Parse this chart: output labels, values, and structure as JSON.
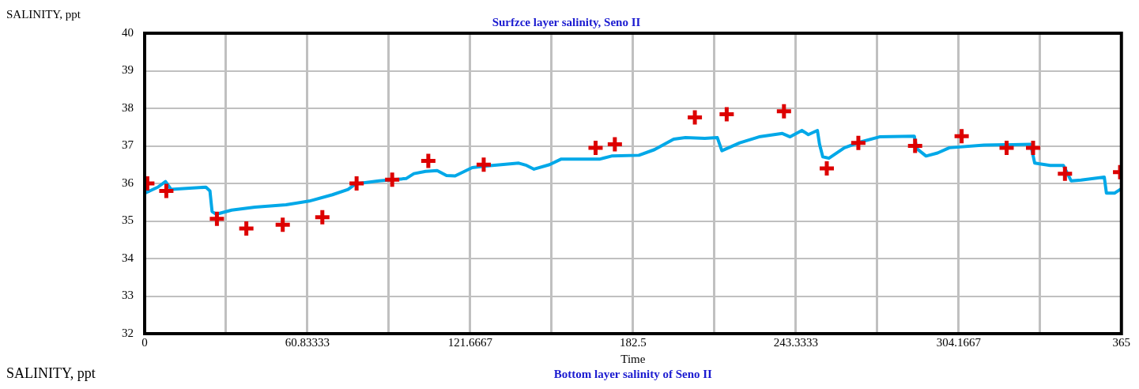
{
  "chart_data": {
    "type": "line",
    "title": "Surfzce layer salinity, Seno II",
    "ylabel": "SALINITY, ppt",
    "xlabel": "Time",
    "annotations": [
      "SALINITY, ppt",
      "Bottom layer salinity of Seno II"
    ],
    "xlim": [
      0,
      365
    ],
    "xticks": [
      0,
      {
        "value": 30.41667,
        "label": null
      },
      60.83333,
      {
        "value": 91.25,
        "label": null
      },
      121.6667,
      {
        "value": 152.0833,
        "label": null
      },
      182.5,
      {
        "value": 212.9167,
        "label": null
      },
      243.3333,
      {
        "value": 273.75,
        "label": null
      },
      304.1667,
      {
        "value": 334.5833,
        "label": null
      },
      365
    ],
    "ylim": [
      32,
      40
    ],
    "yticks": [
      32,
      33,
      34,
      35,
      36,
      37,
      38,
      39,
      40
    ],
    "grid": true,
    "legend": false,
    "series": [
      {
        "color": "#00a8e8",
        "marker": "none",
        "line_style": "solid",
        "x": [
          0,
          4.9,
          7.8,
          9.9,
          18,
          22.9,
          24.4,
          25.2,
          26.7,
          32.5,
          41.2,
          52.8,
          61.5,
          70.2,
          76,
          78.9,
          87.6,
          97.7,
          100.6,
          105,
          109.3,
          112.8,
          116,
          122.4,
          126.7,
          139.8,
          142.7,
          145.5,
          151.3,
          155.7,
          170.2,
          174.5,
          184.7,
          190.5,
          197.7,
          202.1,
          209.3,
          214,
          215.7,
          222.4,
          229.6,
          238.3,
          241.2,
          245.6,
          248,
          251.4,
          252.2,
          253.4,
          255.7,
          261.5,
          267.3,
          274.6,
          287.6,
          288.5,
          292,
          296.3,
          300.7,
          313.7,
          331.1,
          332.6,
          338.4,
          343.3,
          346.2,
          349.9,
          358.6,
          359.4,
          362.4,
          365
        ],
        "values": [
          35.74,
          35.9,
          36.05,
          35.84,
          35.88,
          35.9,
          35.8,
          35.25,
          35.18,
          35.29,
          35.37,
          35.43,
          35.53,
          35.7,
          35.84,
          35.99,
          36.07,
          36.13,
          36.26,
          36.32,
          36.34,
          36.21,
          36.2,
          36.42,
          36.46,
          36.54,
          36.48,
          36.38,
          36.5,
          36.65,
          36.65,
          36.73,
          36.75,
          36.9,
          37.18,
          37.22,
          37.2,
          37.22,
          36.87,
          37.08,
          37.24,
          37.33,
          37.24,
          37.41,
          37.3,
          37.41,
          37.04,
          36.71,
          36.67,
          36.95,
          37.1,
          37.24,
          37.26,
          36.93,
          36.73,
          36.81,
          36.95,
          37.02,
          37.04,
          36.54,
          36.48,
          36.48,
          36.07,
          36.09,
          36.17,
          35.74,
          35.74,
          35.86
        ]
      },
      {
        "type": "scatter",
        "color": "#dd0000",
        "marker": "cross",
        "x": [
          1,
          8.1,
          27,
          38,
          51.6,
          66.4,
          79.2,
          92.5,
          106,
          126.7,
          168.5,
          175.7,
          205.6,
          217.5,
          238.9,
          254.9,
          266.7,
          287.9,
          305.3,
          322.1,
          332,
          343.9,
          364.5
        ],
        "values": [
          36.0,
          35.8,
          35.06,
          34.8,
          34.9,
          35.1,
          36.0,
          36.1,
          36.6,
          36.5,
          36.95,
          37.04,
          37.76,
          37.84,
          37.92,
          36.4,
          37.08,
          37.0,
          37.26,
          36.95,
          36.95,
          36.26,
          36.3
        ]
      }
    ]
  }
}
